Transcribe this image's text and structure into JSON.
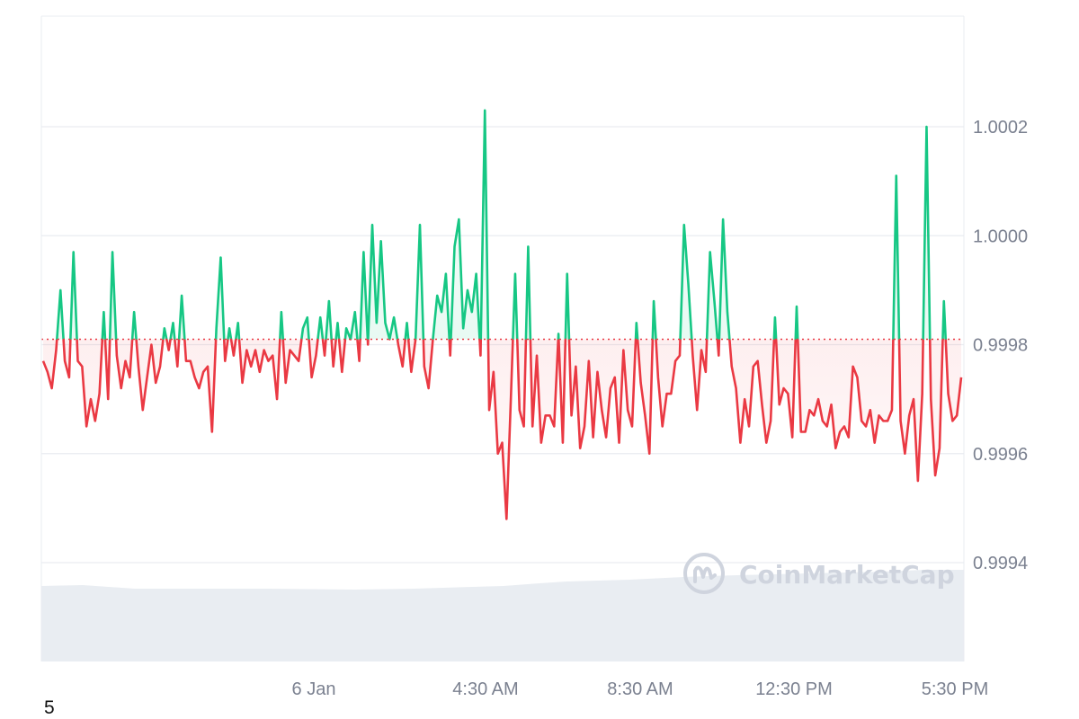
{
  "chart_data": {
    "type": "line",
    "title": "",
    "xlabel": "",
    "ylabel": "",
    "x_tick_labels": [
      "6 Jan",
      "4:30 AM",
      "8:30 AM",
      "12:30 PM",
      "5:30 PM"
    ],
    "y_tick_labels": [
      "1.0002",
      "1.0000",
      "0.9998",
      "0.9996",
      "0.9994"
    ],
    "y_ticks": [
      1.0002,
      1.0,
      0.9998,
      0.9996,
      0.9994
    ],
    "ylim": [
      0.99932,
      1.0004
    ],
    "baseline": 0.99981,
    "grid": true,
    "legend": "none",
    "colors": {
      "above": "#16c784",
      "below": "#ea3943",
      "baseline": "#ea3943",
      "grid": "#e9ecf1",
      "volume": "#e9edf2"
    },
    "series": [
      {
        "values": [
          0.99977,
          0.99975,
          0.99972,
          0.99979,
          0.9999,
          0.99977,
          0.99974,
          0.99997,
          0.99977,
          0.99976,
          0.99965,
          0.9997,
          0.99966,
          0.99971,
          0.99986,
          0.9997,
          0.99997,
          0.99978,
          0.99972,
          0.99977,
          0.99974,
          0.99986,
          0.99976,
          0.99968,
          0.99974,
          0.9998,
          0.99973,
          0.99976,
          0.99983,
          0.99979,
          0.99984,
          0.99976,
          0.99989,
          0.99977,
          0.99977,
          0.99974,
          0.99972,
          0.99975,
          0.99976,
          0.99964,
          0.99983,
          0.99996,
          0.99977,
          0.99983,
          0.99978,
          0.99984,
          0.99973,
          0.99979,
          0.99976,
          0.99979,
          0.99975,
          0.99979,
          0.99977,
          0.99978,
          0.9997,
          0.99986,
          0.99973,
          0.99979,
          0.99978,
          0.99977,
          0.99983,
          0.99985,
          0.99974,
          0.99978,
          0.99985,
          0.99978,
          0.99988,
          0.99976,
          0.99984,
          0.99975,
          0.99983,
          0.99981,
          0.99986,
          0.99977,
          0.99997,
          0.9998,
          1.00002,
          0.99984,
          0.99999,
          0.99984,
          0.99981,
          0.99985,
          0.9998,
          0.99976,
          0.99984,
          0.99975,
          0.99981,
          1.00002,
          0.99976,
          0.99972,
          0.99981,
          0.99989,
          0.99986,
          0.99993,
          0.99978,
          0.99998,
          1.00003,
          0.99983,
          0.9999,
          0.99986,
          0.99993,
          0.99978,
          1.00023,
          0.99968,
          0.99975,
          0.9996,
          0.99962,
          0.99948,
          0.9997,
          0.99993,
          0.99968,
          0.99965,
          0.99998,
          0.99965,
          0.99978,
          0.99962,
          0.99967,
          0.99967,
          0.99965,
          0.99982,
          0.99962,
          0.99993,
          0.99967,
          0.99976,
          0.99961,
          0.99965,
          0.99977,
          0.99963,
          0.99975,
          0.99968,
          0.99963,
          0.99972,
          0.99974,
          0.99962,
          0.99979,
          0.99968,
          0.99965,
          0.99984,
          0.99973,
          0.99967,
          0.9996,
          0.99988,
          0.99974,
          0.99965,
          0.99971,
          0.99971,
          0.99977,
          0.99978,
          1.00002,
          0.99991,
          0.99978,
          0.99968,
          0.99979,
          0.99975,
          0.99997,
          0.99988,
          0.99978,
          1.00003,
          0.99986,
          0.99976,
          0.99972,
          0.99962,
          0.9997,
          0.99965,
          0.99976,
          0.99977,
          0.99969,
          0.99962,
          0.99966,
          0.99985,
          0.99969,
          0.99972,
          0.99971,
          0.99963,
          0.99987,
          0.99964,
          0.99964,
          0.99968,
          0.99967,
          0.9997,
          0.99966,
          0.99965,
          0.99969,
          0.99961,
          0.99964,
          0.99965,
          0.99963,
          0.99976,
          0.99974,
          0.99966,
          0.99965,
          0.99968,
          0.99962,
          0.99967,
          0.99966,
          0.99966,
          0.99968,
          1.00011,
          0.99966,
          0.9996,
          0.99967,
          0.9997,
          0.99955,
          0.99971,
          1.0002,
          0.9997,
          0.99956,
          0.99961,
          0.99988,
          0.99971,
          0.99966,
          0.99967,
          0.99974
        ]
      }
    ]
  },
  "watermark": {
    "text": "CoinMarketCap",
    "icon": "coinmarketcap-logo-icon"
  },
  "footer": {
    "text": "5"
  }
}
